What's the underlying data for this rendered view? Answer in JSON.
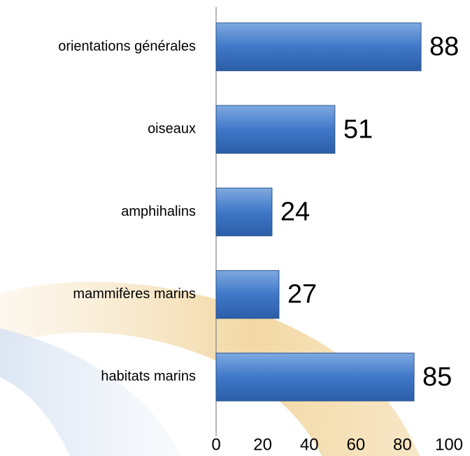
{
  "chart_data": {
    "type": "bar",
    "orientation": "horizontal",
    "categories": [
      "orientations générales",
      "oiseaux",
      "amphihalins",
      "mammifères marins",
      "habitats marins"
    ],
    "values": [
      88,
      51,
      24,
      27,
      85
    ],
    "color": "#4a7ebb",
    "xlim": [
      0,
      100
    ],
    "xticks": [
      0,
      20,
      40,
      60,
      80,
      100
    ],
    "grid": false
  }
}
